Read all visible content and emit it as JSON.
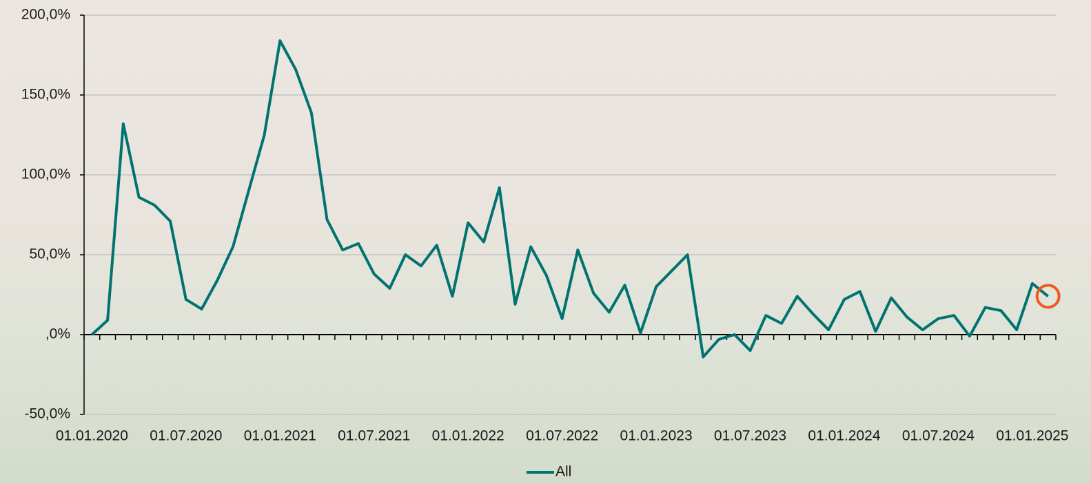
{
  "chart_data": {
    "type": "line",
    "categories": [
      "01.01.2020",
      null,
      null,
      null,
      null,
      null,
      "01.07.2020",
      null,
      null,
      null,
      null,
      null,
      "01.01.2021",
      null,
      null,
      null,
      null,
      null,
      "01.07.2021",
      null,
      null,
      null,
      null,
      null,
      "01.01.2022",
      null,
      null,
      null,
      null,
      null,
      "01.07.2022",
      null,
      null,
      null,
      null,
      null,
      "01.01.2023",
      null,
      null,
      null,
      null,
      null,
      "01.07.2023",
      null,
      null,
      null,
      null,
      null,
      "01.01.2024",
      null,
      null,
      null,
      null,
      null,
      "01.07.2024",
      null,
      null,
      null,
      null,
      null,
      "01.01.2025",
      null
    ],
    "series": [
      {
        "name": "All",
        "color": "#007370",
        "values": [
          0,
          9,
          132,
          86,
          81,
          71,
          22,
          16,
          34,
          55,
          90,
          125,
          184,
          166,
          139,
          72,
          53,
          57,
          38,
          29,
          50,
          43,
          56,
          24,
          70,
          58,
          92,
          19,
          55,
          37,
          10,
          53,
          26,
          14,
          31,
          1,
          30,
          40,
          50,
          -14,
          -3,
          0,
          -10,
          12,
          7,
          24,
          13,
          3,
          22,
          27,
          2,
          23,
          11,
          3,
          10,
          12,
          -1,
          17,
          15,
          3,
          32,
          24
        ]
      }
    ],
    "ylim": [
      -50,
      200
    ],
    "yticks": [
      {
        "value": -50,
        "label": "-50,0%"
      },
      {
        "value": 0,
        "label": ",0%"
      },
      {
        "value": 50,
        "label": "50,0%"
      },
      {
        "value": 100,
        "label": "100,0%"
      },
      {
        "value": 150,
        "label": "150,0%"
      },
      {
        "value": 200,
        "label": "200,0%"
      }
    ],
    "grid": true,
    "legend": "bottom",
    "highlight_last_color": "#f05a1e"
  }
}
